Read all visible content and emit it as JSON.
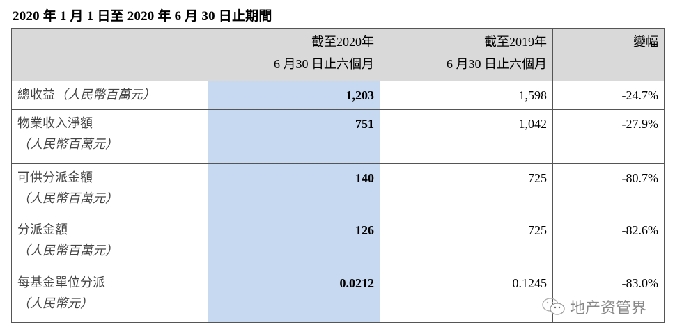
{
  "title": "2020 年 1 月 1 日至 2020 年 6 月 30 日止期間",
  "columns": [
    {
      "line1": "",
      "line2": ""
    },
    {
      "line1": "截至2020年",
      "line2": "6 月30 日止六個月"
    },
    {
      "line1": "截至2019年",
      "line2": "6 月30 日止六個月"
    },
    {
      "line1": "變幅",
      "line2": ""
    }
  ],
  "rows": [
    {
      "label": "總收益",
      "unit": "（人民幣百萬元）",
      "v2020": "1,203",
      "v2019": "1,598",
      "change": "-24.7%"
    },
    {
      "label": "物業收入淨額",
      "unit": "（人民幣百萬元）",
      "v2020": "751",
      "v2019": "1,042",
      "change": "-27.9%"
    },
    {
      "label": "可供分派金額",
      "unit": "（人民幣百萬元）",
      "v2020": "140",
      "v2019": "725",
      "change": "-80.7%"
    },
    {
      "label": "分派金額",
      "unit": "（人民幣百萬元）",
      "v2020": "126",
      "v2019": "725",
      "change": "-82.6%"
    },
    {
      "label": "每基金單位分派",
      "unit": "（人民幣元）",
      "v2020": "0.0212",
      "v2019": "0.1245",
      "change": "-83.0%"
    }
  ],
  "watermark": {
    "text": "地产资管界",
    "icon": "wechat-icon"
  },
  "colors": {
    "header_bg": "#d9d9d9",
    "highlight_bg": "#c6d9f1"
  }
}
